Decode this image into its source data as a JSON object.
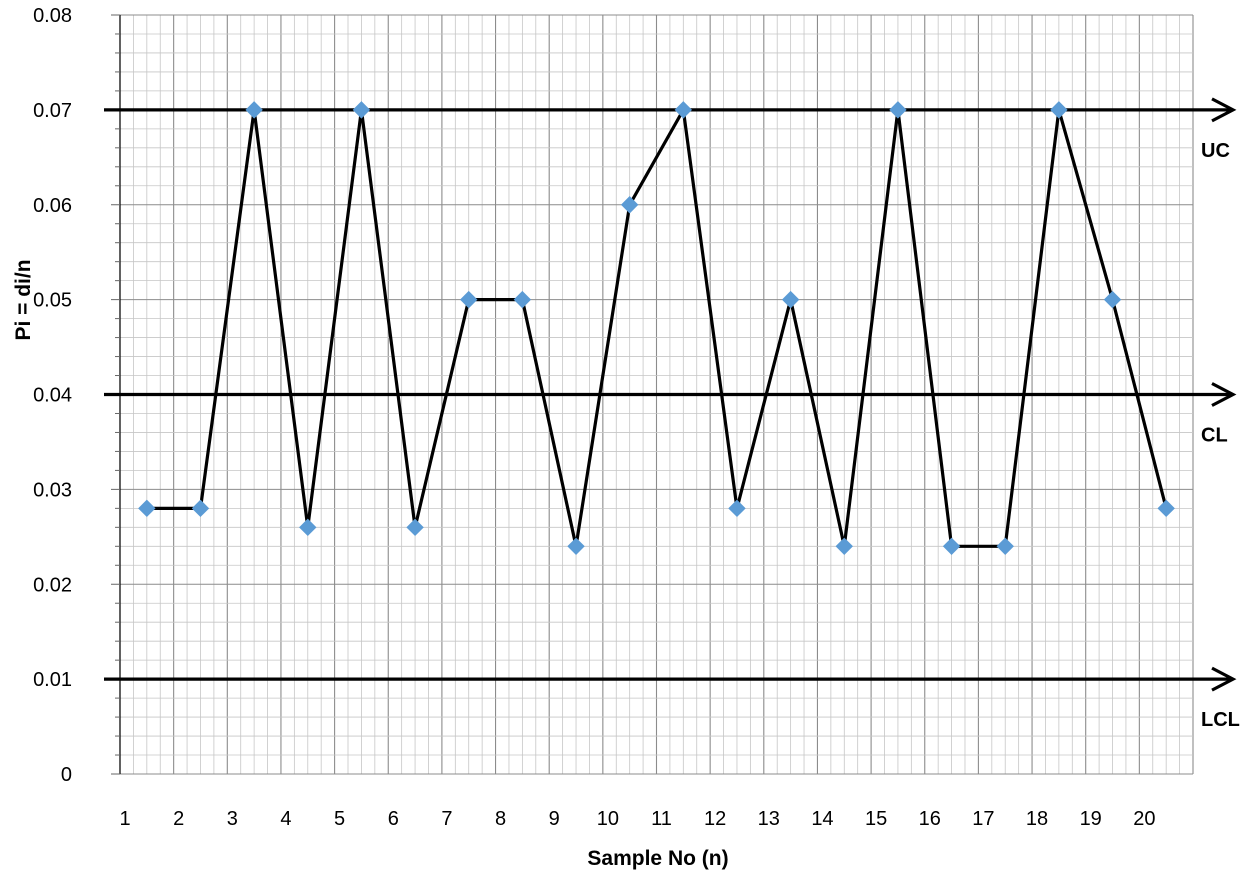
{
  "chart_data": {
    "type": "line",
    "xlabel": "Sample No (n)",
    "ylabel": "Pi = di/n",
    "ylim": [
      0,
      0.08
    ],
    "y_ticks": [
      "0",
      "0.01",
      "0.02",
      "0.03",
      "0.04",
      "0.05",
      "0.06",
      "0.07",
      "0.08"
    ],
    "x_ticks": [
      "1",
      "2",
      "3",
      "4",
      "5",
      "6",
      "7",
      "8",
      "9",
      "10",
      "11",
      "12",
      "13",
      "14",
      "15",
      "16",
      "17",
      "18",
      "19",
      "20"
    ],
    "grid": true,
    "series": [
      {
        "x": [
          1,
          2,
          3,
          4,
          5,
          6,
          7,
          8,
          9,
          10,
          11,
          12,
          13,
          14,
          15,
          16,
          17,
          18,
          19,
          20
        ],
        "values": [
          0.028,
          0.028,
          0.07,
          0.026,
          0.07,
          0.026,
          0.05,
          0.05,
          0.024,
          0.06,
          0.07,
          0.028,
          0.05,
          0.024,
          0.07,
          0.024,
          0.024,
          0.07,
          0.05,
          0.028
        ],
        "line_color": "#000000",
        "marker_color": "#5B9BD5"
      }
    ],
    "control_lines": [
      {
        "label": "UC",
        "value": 0.07
      },
      {
        "label": "CL",
        "value": 0.04
      },
      {
        "label": "LCL",
        "value": 0.01
      }
    ],
    "colors": {
      "grid_minor": "#c6c6c6",
      "grid_major": "#8c8c8c",
      "axis": "#000000"
    }
  }
}
